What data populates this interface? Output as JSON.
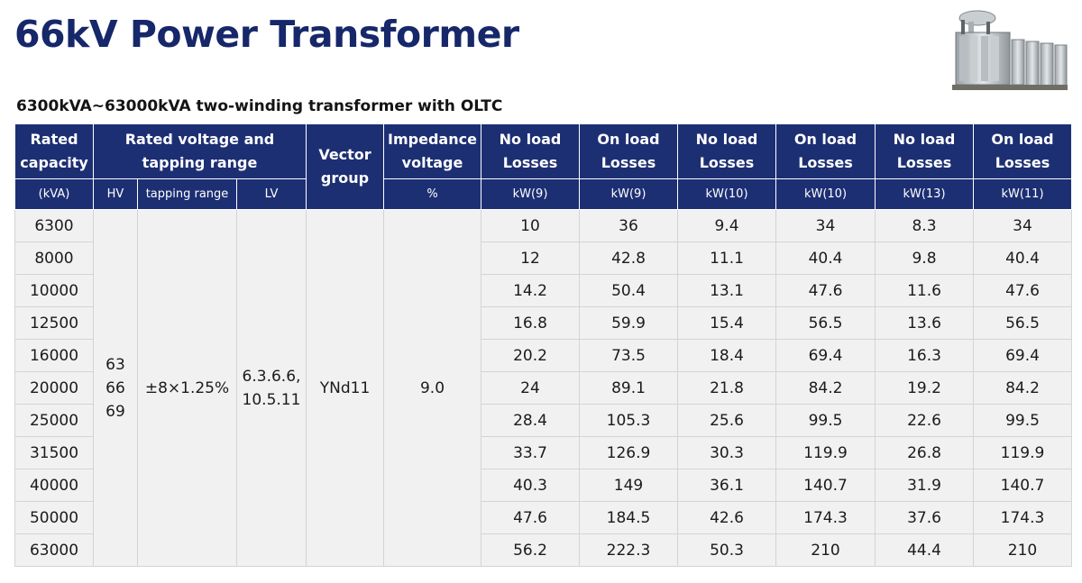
{
  "title": "66kV Power Transformer",
  "subtitle": "6300kVA~63000kVA two-winding transformer with OLTC",
  "table": {
    "headers_top": {
      "capacity": "Rated capacity",
      "voltage": "Rated voltage and tapping range",
      "vector": "Vector group",
      "impedance": "Impedance voltage",
      "noload1": "No load Losses",
      "onload1": "On load Losses",
      "noload2": "No load Losses",
      "onload2": "On load Losses",
      "noload3": "No load Losses",
      "onload3": "On load Losses"
    },
    "headers_sub": [
      "(kVA)",
      "HV",
      "tapping range",
      "LV",
      "%",
      "kW(9)",
      "kW(9)",
      "kW(10)",
      "kW(10)",
      "kW(13)",
      "kW(11)"
    ],
    "hv": [
      "63",
      "66",
      "69"
    ],
    "tapping": "±8×1.25%",
    "lv": [
      "6.3.6.6,",
      "10.5.11"
    ],
    "vector": "YNd11",
    "impedance": "9.0",
    "rows": [
      [
        "6300",
        "10",
        "36",
        "9.4",
        "34",
        "8.3",
        "34"
      ],
      [
        "8000",
        "12",
        "42.8",
        "11.1",
        "40.4",
        "9.8",
        "40.4"
      ],
      [
        "10000",
        "14.2",
        "50.4",
        "13.1",
        "47.6",
        "11.6",
        "47.6"
      ],
      [
        "12500",
        "16.8",
        "59.9",
        "15.4",
        "56.5",
        "13.6",
        "56.5"
      ],
      [
        "16000",
        "20.2",
        "73.5",
        "18.4",
        "69.4",
        "16.3",
        "69.4"
      ],
      [
        "20000",
        "24",
        "89.1",
        "21.8",
        "84.2",
        "19.2",
        "84.2"
      ],
      [
        "25000",
        "28.4",
        "105.3",
        "25.6",
        "99.5",
        "22.6",
        "99.5"
      ],
      [
        "31500",
        "33.7",
        "126.9",
        "30.3",
        "119.9",
        "26.8",
        "119.9"
      ],
      [
        "40000",
        "40.3",
        "149",
        "36.1",
        "140.7",
        "31.9",
        "140.7"
      ],
      [
        "50000",
        "47.6",
        "184.5",
        "42.6",
        "174.3",
        "37.6",
        "174.3"
      ],
      [
        "63000",
        "56.2",
        "222.3",
        "50.3",
        "210",
        "44.4",
        "210"
      ]
    ]
  },
  "product_image": {
    "icon": "transformer-icon"
  }
}
